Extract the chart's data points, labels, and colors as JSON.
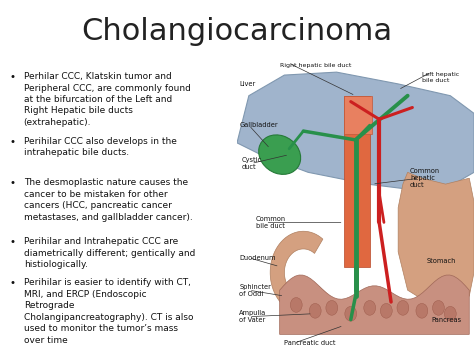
{
  "title": "Cholangiocarcinoma",
  "title_fontsize": 22,
  "title_color": "#222222",
  "background_color": "#ffffff",
  "bullet_points": [
    "Perhilar CCC, Klatskin tumor and\nPeripheral CCC, are commonly found\nat the bifurcation of the Left and\nRight Hepatic bile ducts\n(extrahepatic).",
    "Perihilar CCC also develops in the\nintrahepatic bile ducts.",
    "The desmoplastic nature causes the\ncancer to be mistaken for other\ncancers (HCC, pancreatic cancer\nmetastases, and gallbladder cancer).",
    "Perihilar and Intrahepatic CCC are\ndiametrically different; gentically and\nhistiologically.",
    "Perihilar is easier to identify with CT,\nMRI, and ERCP (Endoscopic\nRetrograde\nCholangipancreatography). CT is also\nused to monitor the tumor’s mass\nover time"
  ],
  "bullet_fontsize": 6.5,
  "bullet_color": "#111111",
  "diagram_bg": "#bec8d8",
  "liver_color": "#a0b4cc",
  "liver_edge": "#8098b0",
  "gallbladder_color": "#3a9e50",
  "gallbladder_edge": "#267a38",
  "stomach_color": "#d4a080",
  "stomach_edge": "#b08060",
  "duodenum_color": "#d4a080",
  "pancreas_color": "#c89080",
  "pancreas_edge": "#a06858",
  "duct_orange": "#e06840",
  "duct_orange_edge": "#b84828",
  "green_duct": "#28904a",
  "red_artery": "#cc2020",
  "label_fontsize": 4.8,
  "label_color": "#111111"
}
